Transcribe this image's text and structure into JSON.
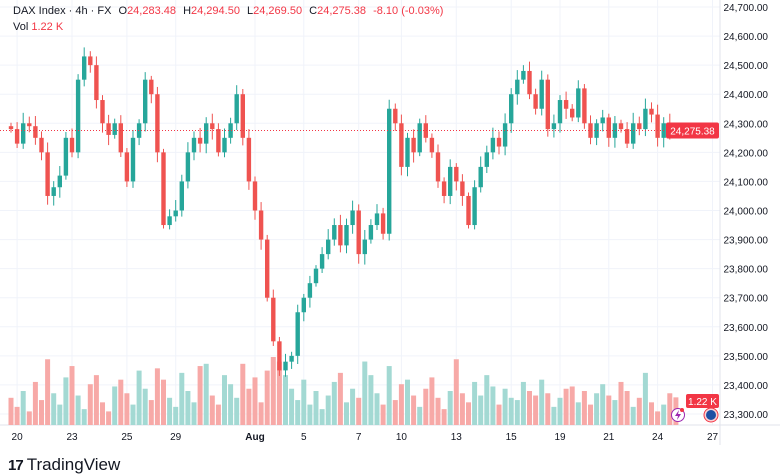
{
  "header": {
    "symbol": "DAX Index · 4h · FX",
    "o_label": "O",
    "o": "24,283.48",
    "h_label": "H",
    "h": "24,294.50",
    "l_label": "L",
    "l": "24,269.50",
    "c_label": "C",
    "c": "24,275.38",
    "change": "-8.10 (-0.03%)",
    "vol_label": "Vol",
    "vol": "1.22 K"
  },
  "price_badge": "24,275.38",
  "vol_badge": "1.22 K",
  "logo": "TradingView",
  "colors": {
    "up": "#26a69a",
    "down": "#ef5350",
    "up_vol": "#a3d9d3",
    "down_vol": "#f7a9a7",
    "badge": "#f23645"
  },
  "chart_data": {
    "type": "candlestick",
    "ylim": [
      23300,
      24700
    ],
    "y_ticks": [
      "24,700.00",
      "24,600.00",
      "24,500.00",
      "24,400.00",
      "24,300.00",
      "24,200.00",
      "24,100.00",
      "24,000.00",
      "23,900.00",
      "23,800.00",
      "23,700.00",
      "23,600.00",
      "23,500.00",
      "23,400.00",
      "23,300.00"
    ],
    "x_ticks": [
      {
        "label": "20",
        "i": 1
      },
      {
        "label": "23",
        "i": 10
      },
      {
        "label": "25",
        "i": 19
      },
      {
        "label": "29",
        "i": 27
      },
      {
        "label": "Aug",
        "i": 40
      },
      {
        "label": "5",
        "i": 48
      },
      {
        "label": "7",
        "i": 57
      },
      {
        "label": "10",
        "i": 64
      },
      {
        "label": "13",
        "i": 73
      },
      {
        "label": "15",
        "i": 82
      },
      {
        "label": "19",
        "i": 90
      },
      {
        "label": "21",
        "i": 98
      },
      {
        "label": "24",
        "i": 106
      },
      {
        "label": "27",
        "i": 115
      }
    ],
    "open_first": 24290,
    "closes": [
      24280,
      24230,
      24300,
      24290,
      24250,
      24200,
      24050,
      24080,
      24120,
      24250,
      24200,
      24450,
      24530,
      24500,
      24380,
      24300,
      24260,
      24300,
      24200,
      24100,
      24250,
      24300,
      24450,
      24400,
      24200,
      23950,
      23980,
      24000,
      24100,
      24200,
      24250,
      24230,
      24300,
      24280,
      24200,
      24250,
      24300,
      24400,
      24250,
      24100,
      24000,
      23900,
      23700,
      23550,
      23450,
      23480,
      23500,
      23650,
      23700,
      23750,
      23800,
      23850,
      23900,
      23950,
      23880,
      23950,
      24000,
      23850,
      23900,
      23950,
      23990,
      23920,
      24350,
      24300,
      24150,
      24250,
      24200,
      24300,
      24250,
      24200,
      24100,
      24050,
      24150,
      24100,
      24050,
      23950,
      24080,
      24150,
      24200,
      24250,
      24220,
      24300,
      24400,
      24450,
      24480,
      24400,
      24350,
      24450,
      24280,
      24300,
      24380,
      24350,
      24320,
      24420,
      24300,
      24250,
      24300,
      24320,
      24250,
      24300,
      24280,
      24230,
      24300,
      24280,
      24350,
      24330,
      24250,
      24300,
      24280,
      24275
    ],
    "volumes": [
      1.2,
      0.8,
      1.5,
      0.6,
      1.9,
      1.1,
      2.9,
      1.4,
      0.9,
      2.1,
      2.6,
      1.3,
      0.7,
      1.8,
      2.2,
      1.0,
      0.6,
      1.7,
      2.0,
      1.4,
      0.9,
      2.4,
      1.6,
      1.1,
      2.5,
      2.0,
      1.2,
      0.8,
      2.3,
      1.5,
      1.0,
      2.6,
      2.7,
      1.3,
      0.9,
      2.2,
      1.8,
      1.2,
      2.7,
      1.6,
      2.1,
      1.0,
      2.4,
      3.0,
      2.8,
      2.2,
      1.6,
      1.1,
      2.0,
      0.9,
      1.5,
      0.7,
      1.3,
      1.9,
      2.3,
      1.0,
      1.6,
      1.2,
      2.8,
      2.2,
      1.4,
      0.9,
      2.6,
      1.1,
      1.8,
      2.0,
      1.3,
      0.8,
      1.6,
      2.1,
      1.2,
      0.7,
      1.5,
      2.9,
      1.4,
      1.0,
      1.9,
      1.3,
      2.2,
      1.7,
      0.9,
      1.6,
      1.2,
      1.1,
      1.9,
      1.5,
      1.3,
      2.0,
      1.4,
      0.8,
      1.2,
      1.6,
      1.7,
      1.0,
      1.5,
      0.9,
      1.4,
      1.8,
      1.3,
      1.1,
      1.9,
      1.5,
      0.8,
      1.2,
      2.3,
      1.0,
      0.6,
      0.9,
      1.4,
      1.22
    ]
  }
}
